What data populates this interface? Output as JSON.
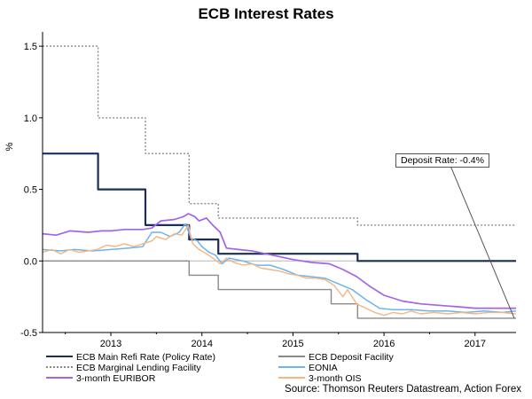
{
  "chart_data": {
    "type": "line",
    "title": "ECB Interest Rates",
    "ylabel": "%",
    "xlabel": "",
    "x_range": [
      2012.25,
      2017.45
    ],
    "ylim": [
      -0.5,
      1.6
    ],
    "y_ticks": [
      -0.5,
      0.0,
      0.5,
      1.0,
      1.5
    ],
    "y_tick_labels": [
      "-0.5",
      "0.0",
      "0.5",
      "1.0",
      "1.5"
    ],
    "x_ticks": [
      2013,
      2014,
      2015,
      2016,
      2017
    ],
    "x_tick_labels": [
      "2013",
      "2014",
      "2015",
      "2016",
      "2017"
    ],
    "annotation": {
      "text": "Deposit Rate: -0.4%",
      "x": 2017.43,
      "y": -0.4
    },
    "source": "Source: Thomson Reuters Datastream, Action Forex",
    "series": [
      {
        "name": "ECB Main Refi Rate (Policy Rate)",
        "style": "step",
        "color": "#1a2e57",
        "dash": "",
        "width": 2.2,
        "points": [
          [
            2012.25,
            0.75
          ],
          [
            2012.86,
            0.75
          ],
          [
            2012.86,
            0.5
          ],
          [
            2013.38,
            0.5
          ],
          [
            2013.38,
            0.25
          ],
          [
            2013.86,
            0.25
          ],
          [
            2013.86,
            0.15
          ],
          [
            2014.18,
            0.15
          ],
          [
            2014.18,
            0.05
          ],
          [
            2015.71,
            0.05
          ],
          [
            2015.71,
            0.0
          ],
          [
            2017.45,
            0.0
          ]
        ]
      },
      {
        "name": "ECB Marginal Lending Facility",
        "style": "step",
        "color": "#888888",
        "dash": "2,2",
        "width": 1.4,
        "points": [
          [
            2012.25,
            1.5
          ],
          [
            2012.86,
            1.5
          ],
          [
            2012.86,
            1.0
          ],
          [
            2013.38,
            1.0
          ],
          [
            2013.38,
            0.75
          ],
          [
            2013.86,
            0.75
          ],
          [
            2013.86,
            0.4
          ],
          [
            2014.18,
            0.4
          ],
          [
            2014.18,
            0.3
          ],
          [
            2015.71,
            0.3
          ],
          [
            2015.71,
            0.25
          ],
          [
            2017.45,
            0.25
          ]
        ]
      },
      {
        "name": "3-month EURIBOR",
        "style": "line",
        "color": "#a264e8",
        "dash": "",
        "width": 1.7,
        "points": [
          [
            2012.25,
            0.19
          ],
          [
            2012.4,
            0.18
          ],
          [
            2012.55,
            0.21
          ],
          [
            2012.75,
            0.2
          ],
          [
            2012.9,
            0.21
          ],
          [
            2013.0,
            0.21
          ],
          [
            2013.15,
            0.22
          ],
          [
            2013.35,
            0.22
          ],
          [
            2013.45,
            0.23
          ],
          [
            2013.55,
            0.28
          ],
          [
            2013.7,
            0.29
          ],
          [
            2013.8,
            0.31
          ],
          [
            2013.85,
            0.33
          ],
          [
            2013.92,
            0.31
          ],
          [
            2013.97,
            0.28
          ],
          [
            2014.05,
            0.3
          ],
          [
            2014.12,
            0.25
          ],
          [
            2014.2,
            0.2
          ],
          [
            2014.27,
            0.09
          ],
          [
            2014.4,
            0.08
          ],
          [
            2014.55,
            0.07
          ],
          [
            2014.7,
            0.05
          ],
          [
            2014.85,
            0.03
          ],
          [
            2015.0,
            0.01
          ],
          [
            2015.2,
            -0.01
          ],
          [
            2015.4,
            -0.02
          ],
          [
            2015.55,
            -0.06
          ],
          [
            2015.7,
            -0.11
          ],
          [
            2015.85,
            -0.18
          ],
          [
            2016.0,
            -0.24
          ],
          [
            2016.2,
            -0.28
          ],
          [
            2016.4,
            -0.3
          ],
          [
            2016.6,
            -0.31
          ],
          [
            2016.8,
            -0.32
          ],
          [
            2017.0,
            -0.33
          ],
          [
            2017.2,
            -0.33
          ],
          [
            2017.45,
            -0.33
          ]
        ]
      },
      {
        "name": "ECB Deposit Facility",
        "style": "step",
        "color": "#8a8a8a",
        "dash": "",
        "width": 1.4,
        "points": [
          [
            2012.25,
            0.0
          ],
          [
            2013.86,
            0.0
          ],
          [
            2013.86,
            -0.1
          ],
          [
            2014.18,
            -0.1
          ],
          [
            2014.18,
            -0.2
          ],
          [
            2015.42,
            -0.2
          ],
          [
            2015.42,
            -0.3
          ],
          [
            2015.71,
            -0.3
          ],
          [
            2015.71,
            -0.4
          ],
          [
            2017.45,
            -0.4
          ]
        ]
      },
      {
        "name": "EONIA",
        "style": "line",
        "color": "#6cb4ee",
        "dash": "",
        "width": 1.5,
        "points": [
          [
            2012.25,
            0.08
          ],
          [
            2012.45,
            0.07
          ],
          [
            2012.6,
            0.08
          ],
          [
            2012.8,
            0.07
          ],
          [
            2013.0,
            0.08
          ],
          [
            2013.2,
            0.09
          ],
          [
            2013.35,
            0.1
          ],
          [
            2013.45,
            0.2
          ],
          [
            2013.55,
            0.2
          ],
          [
            2013.65,
            0.17
          ],
          [
            2013.75,
            0.2
          ],
          [
            2013.82,
            0.26
          ],
          [
            2013.88,
            0.16
          ],
          [
            2013.95,
            0.14
          ],
          [
            2014.0,
            0.1
          ],
          [
            2014.08,
            0.06
          ],
          [
            2014.15,
            0.04
          ],
          [
            2014.22,
            -0.02
          ],
          [
            2014.3,
            0.02
          ],
          [
            2014.45,
            0.0
          ],
          [
            2014.6,
            -0.03
          ],
          [
            2014.75,
            -0.03
          ],
          [
            2014.9,
            -0.06
          ],
          [
            2015.05,
            -0.1
          ],
          [
            2015.2,
            -0.11
          ],
          [
            2015.35,
            -0.12
          ],
          [
            2015.5,
            -0.16
          ],
          [
            2015.65,
            -0.2
          ],
          [
            2015.8,
            -0.27
          ],
          [
            2015.95,
            -0.33
          ],
          [
            2016.1,
            -0.34
          ],
          [
            2016.3,
            -0.34
          ],
          [
            2016.5,
            -0.35
          ],
          [
            2016.7,
            -0.35
          ],
          [
            2016.9,
            -0.36
          ],
          [
            2017.1,
            -0.35
          ],
          [
            2017.3,
            -0.36
          ],
          [
            2017.45,
            -0.35
          ]
        ]
      },
      {
        "name": "3-month OIS",
        "style": "line",
        "color": "#f4b682",
        "dash": "",
        "width": 1.4,
        "points": [
          [
            2012.25,
            0.06
          ],
          [
            2012.35,
            0.08
          ],
          [
            2012.45,
            0.05
          ],
          [
            2012.55,
            0.08
          ],
          [
            2012.65,
            0.06
          ],
          [
            2012.75,
            0.07
          ],
          [
            2012.85,
            0.08
          ],
          [
            2012.95,
            0.11
          ],
          [
            2013.05,
            0.1
          ],
          [
            2013.15,
            0.12
          ],
          [
            2013.25,
            0.1
          ],
          [
            2013.35,
            0.12
          ],
          [
            2013.45,
            0.14
          ],
          [
            2013.5,
            0.17
          ],
          [
            2013.6,
            0.15
          ],
          [
            2013.7,
            0.19
          ],
          [
            2013.78,
            0.18
          ],
          [
            2013.85,
            0.25
          ],
          [
            2013.9,
            0.12
          ],
          [
            2013.97,
            0.08
          ],
          [
            2014.05,
            0.05
          ],
          [
            2014.12,
            0.02
          ],
          [
            2014.2,
            -0.02
          ],
          [
            2014.27,
            0.02
          ],
          [
            2014.35,
            -0.01
          ],
          [
            2014.45,
            -0.03
          ],
          [
            2014.55,
            -0.02
          ],
          [
            2014.65,
            -0.05
          ],
          [
            2014.75,
            -0.06
          ],
          [
            2014.85,
            -0.07
          ],
          [
            2014.95,
            -0.09
          ],
          [
            2015.05,
            -0.1
          ],
          [
            2015.15,
            -0.12
          ],
          [
            2015.25,
            -0.12
          ],
          [
            2015.35,
            -0.13
          ],
          [
            2015.45,
            -0.17
          ],
          [
            2015.55,
            -0.25
          ],
          [
            2015.6,
            -0.2
          ],
          [
            2015.7,
            -0.3
          ],
          [
            2015.8,
            -0.33
          ],
          [
            2015.9,
            -0.36
          ],
          [
            2016.0,
            -0.38
          ],
          [
            2016.1,
            -0.36
          ],
          [
            2016.2,
            -0.37
          ],
          [
            2016.3,
            -0.35
          ],
          [
            2016.4,
            -0.37
          ],
          [
            2016.55,
            -0.36
          ],
          [
            2016.7,
            -0.37
          ],
          [
            2016.85,
            -0.36
          ],
          [
            2017.0,
            -0.37
          ],
          [
            2017.15,
            -0.36
          ],
          [
            2017.3,
            -0.36
          ],
          [
            2017.45,
            -0.37
          ]
        ]
      }
    ]
  }
}
